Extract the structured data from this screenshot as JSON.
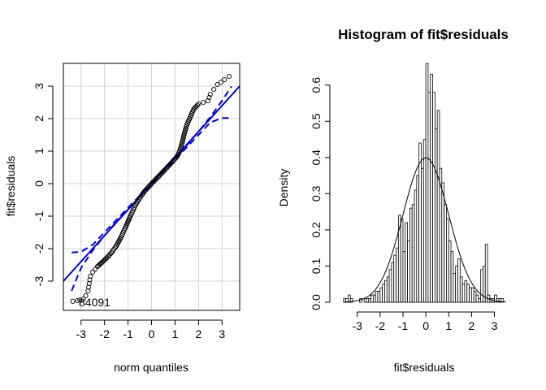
{
  "chart_data": [
    {
      "type": "scatter",
      "title": "",
      "xlabel": "norm quantiles",
      "ylabel": "fit$residuals",
      "xlim": [
        -3.75,
        3.75
      ],
      "ylim": [
        -3.9,
        3.7
      ],
      "xticks": [
        -3,
        -2,
        -1,
        0,
        1,
        2,
        3
      ],
      "xtick_labels": [
        "-3",
        "-2",
        "-1",
        "0",
        "1",
        "2",
        "3"
      ],
      "yticks": [
        -3,
        -2,
        -1,
        0,
        1,
        2,
        3
      ],
      "ytick_labels": [
        "-3",
        "-2",
        "-1",
        "0",
        "1",
        "2",
        "3"
      ],
      "grid": true,
      "colors": {
        "points": "#000000",
        "reference_line": "#0000cd",
        "envelope": "#0000cd",
        "grid": "#d3d3d3"
      },
      "reference_line": {
        "intercept": 0.0,
        "slope": 0.8
      },
      "envelope_upper": [
        [
          -3.4,
          -2.12
        ],
        [
          -3.0,
          -2.1
        ],
        [
          -2.5,
          -1.88
        ],
        [
          -2.0,
          -1.5
        ],
        [
          -1.5,
          -1.12
        ],
        [
          -1.0,
          -0.74
        ],
        [
          -0.5,
          -0.37
        ],
        [
          0.0,
          0.02
        ],
        [
          0.5,
          0.41
        ],
        [
          1.0,
          0.8
        ],
        [
          1.5,
          1.18
        ],
        [
          2.0,
          1.6
        ],
        [
          2.5,
          2.05
        ],
        [
          3.0,
          2.55
        ],
        [
          3.4,
          2.99
        ]
      ],
      "envelope_lower": [
        [
          -3.4,
          -3.3
        ],
        [
          -3.0,
          -2.6
        ],
        [
          -2.5,
          -2.05
        ],
        [
          -2.0,
          -1.6
        ],
        [
          -1.5,
          -1.18
        ],
        [
          -1.0,
          -0.8
        ],
        [
          -0.5,
          -0.41
        ],
        [
          0.0,
          -0.02
        ],
        [
          0.5,
          0.37
        ],
        [
          1.0,
          0.74
        ],
        [
          1.5,
          1.12
        ],
        [
          2.0,
          1.5
        ],
        [
          2.5,
          1.88
        ],
        [
          3.0,
          2.02
        ],
        [
          3.4,
          2.02
        ]
      ],
      "points_curve": [
        [
          -3.35,
          -3.62
        ],
        [
          -3.15,
          -3.6
        ],
        [
          -3.05,
          -3.58
        ],
        [
          -2.9,
          -3.55
        ],
        [
          -2.8,
          -3.45
        ],
        [
          -2.7,
          -3.3
        ],
        [
          -2.6,
          -2.85
        ],
        [
          -2.5,
          -2.72
        ],
        [
          -2.3,
          -2.55
        ],
        [
          -2.1,
          -2.42
        ],
        [
          -1.9,
          -2.28
        ],
        [
          -1.7,
          -2.12
        ],
        [
          -1.5,
          -1.92
        ],
        [
          -1.3,
          -1.65
        ],
        [
          -1.1,
          -1.33
        ],
        [
          -0.9,
          -1.0
        ],
        [
          -0.7,
          -0.68
        ],
        [
          -0.5,
          -0.44
        ],
        [
          -0.3,
          -0.24
        ],
        [
          0.0,
          0.0
        ],
        [
          0.3,
          0.22
        ],
        [
          0.6,
          0.45
        ],
        [
          0.9,
          0.68
        ],
        [
          1.1,
          0.85
        ],
        [
          1.2,
          1.0
        ],
        [
          1.3,
          1.25
        ],
        [
          1.4,
          1.55
        ],
        [
          1.5,
          1.8
        ],
        [
          1.65,
          2.05
        ],
        [
          1.8,
          2.3
        ],
        [
          2.0,
          2.45
        ],
        [
          2.2,
          2.5
        ],
        [
          2.4,
          2.55
        ],
        [
          2.5,
          2.75
        ],
        [
          2.65,
          2.9
        ],
        [
          2.8,
          3.05
        ],
        [
          2.95,
          3.12
        ],
        [
          3.1,
          3.2
        ],
        [
          3.3,
          3.3
        ]
      ],
      "annotations": [
        "84091"
      ]
    },
    {
      "type": "bar",
      "title": "Histogram of fit$residuals",
      "xlabel": "fit$residuals",
      "ylabel": "Density",
      "xlim": [
        -3.7,
        3.55
      ],
      "ylim": [
        0,
        0.66
      ],
      "xticks": [
        -3,
        -2,
        -1,
        0,
        1,
        2,
        3
      ],
      "xtick_labels": [
        "-3",
        "-2",
        "-1",
        "0",
        "1",
        "2",
        "3"
      ],
      "yticks": [
        0.0,
        0.1,
        0.2,
        0.3,
        0.4,
        0.5,
        0.6
      ],
      "ytick_labels": [
        "0.0",
        "0.1",
        "0.2",
        "0.3",
        "0.4",
        "0.5",
        "0.6"
      ],
      "grid": false,
      "bin_start": -3.6,
      "bin_width": 0.1,
      "values": [
        0.01,
        0.01,
        0.02,
        0.01,
        0.0,
        0.0,
        0.0,
        0.01,
        0.0,
        0.01,
        0.01,
        0.01,
        0.02,
        0.02,
        0.03,
        0.03,
        0.04,
        0.05,
        0.06,
        0.07,
        0.09,
        0.11,
        0.13,
        0.15,
        0.24,
        0.23,
        0.14,
        0.22,
        0.17,
        0.26,
        0.27,
        0.31,
        0.35,
        0.44,
        0.37,
        0.45,
        0.66,
        0.58,
        0.63,
        0.58,
        0.48,
        0.53,
        0.37,
        0.33,
        0.27,
        0.23,
        0.17,
        0.14,
        0.08,
        0.1,
        0.12,
        0.07,
        0.05,
        0.06,
        0.05,
        0.04,
        0.04,
        0.03,
        0.02,
        0.01,
        0.09,
        0.1,
        0.16,
        0.02,
        0.01,
        0.01,
        0.02,
        0.01,
        0.01,
        0.01
      ],
      "density_curve": {
        "mean": 0.0,
        "sd": 1.0
      },
      "colors": {
        "bars_fill": "#ffffff",
        "bars_stroke": "#000000",
        "curve": "#000000"
      }
    }
  ]
}
